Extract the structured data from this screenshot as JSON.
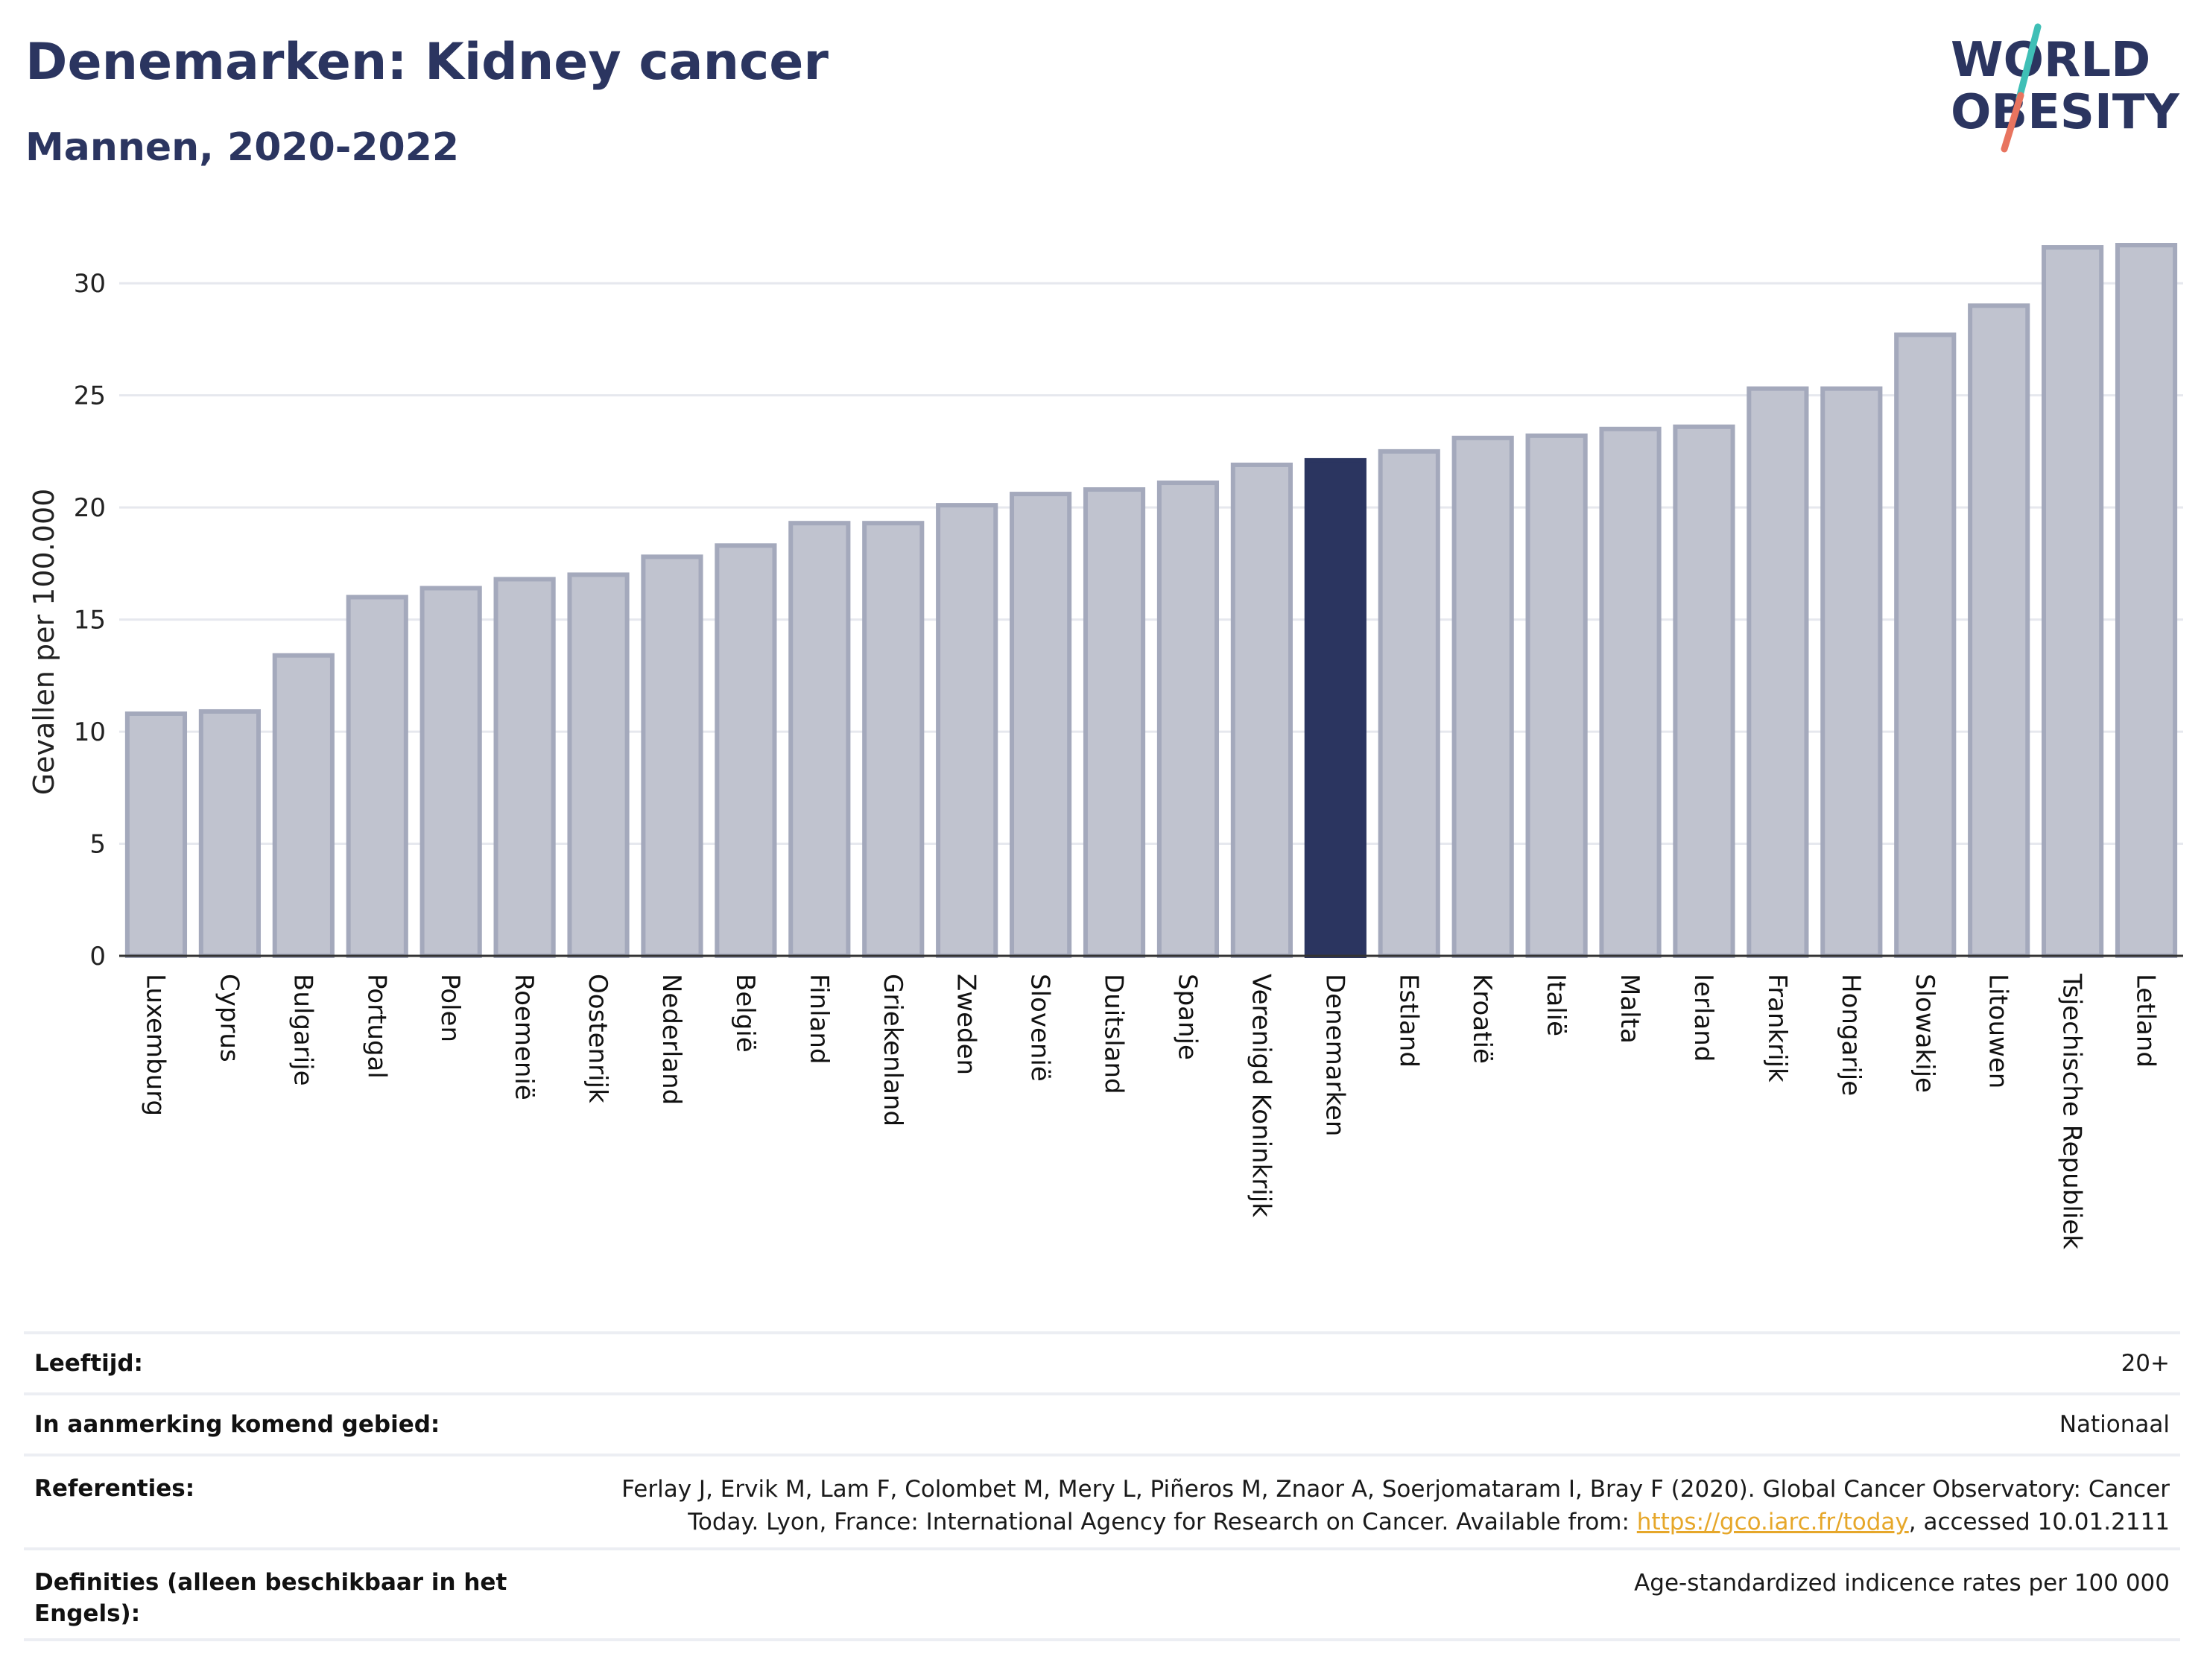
{
  "header": {
    "title": "Denemarken: Kidney cancer",
    "subtitle": "Mannen, 2020-2022"
  },
  "logo": {
    "line1": "WORLD",
    "line2": "OBESITY"
  },
  "colors": {
    "bar_default": "#c0c3cf",
    "bar_outline": "#a4a9bc",
    "bar_highlight": "#2b3560",
    "title": "#2b3560",
    "link": "#e6a72a",
    "logo_teal": "#3fbfb6",
    "logo_coral": "#e8745f"
  },
  "chart_data": {
    "type": "bar",
    "ylabel": "Gevallen per 100.000",
    "xlabel": "",
    "ylim": [
      0,
      32
    ],
    "yticks": [
      0,
      5,
      10,
      15,
      20,
      25,
      30
    ],
    "grid": true,
    "highlight": "Denemarken",
    "categories": [
      "Luxemburg",
      "Cyprus",
      "Bulgarije",
      "Portugal",
      "Polen",
      "Roemenië",
      "Oostenrijk",
      "Nederland",
      "België",
      "Finland",
      "Griekenland",
      "Zweden",
      "Slovenië",
      "Duitsland",
      "Spanje",
      "Verenigd Koninkrijk",
      "Denemarken",
      "Estland",
      "Kroatië",
      "Italië",
      "Malta",
      "Ierland",
      "Frankrijk",
      "Hongarije",
      "Slowakije",
      "Litouwen",
      "Tsjechische Republiek",
      "Letland"
    ],
    "values": [
      10.8,
      10.9,
      13.4,
      16.0,
      16.4,
      16.8,
      17.0,
      17.8,
      18.3,
      19.3,
      19.3,
      20.1,
      20.6,
      20.8,
      21.1,
      21.9,
      22.1,
      22.5,
      23.1,
      23.2,
      23.5,
      23.6,
      25.3,
      25.3,
      27.7,
      29.0,
      31.6,
      31.7
    ]
  },
  "info": {
    "age_label": "Leeftijd:",
    "age_value": "20+",
    "area_label": "In aanmerking komend gebied:",
    "area_value": "Nationaal",
    "refs_label": "Referenties:",
    "refs_line1": "Ferlay J, Ervik M, Lam F, Colombet M, Mery L, Piñeros M, Znaor A, Soerjomataram I, Bray F (2020). Global Cancer Observatory: Cancer",
    "refs_line2_pre": "Today. Lyon, France: International Agency for Research on Cancer. Available from: ",
    "refs_link": "https://gco.iarc.fr/today",
    "refs_line2_post": ", accessed 10.01.2111",
    "defs_label_1": "Definities (alleen beschikbaar in het",
    "defs_label_2": "Engels):",
    "defs_value": "Age-standardized indicence rates per 100 000"
  }
}
